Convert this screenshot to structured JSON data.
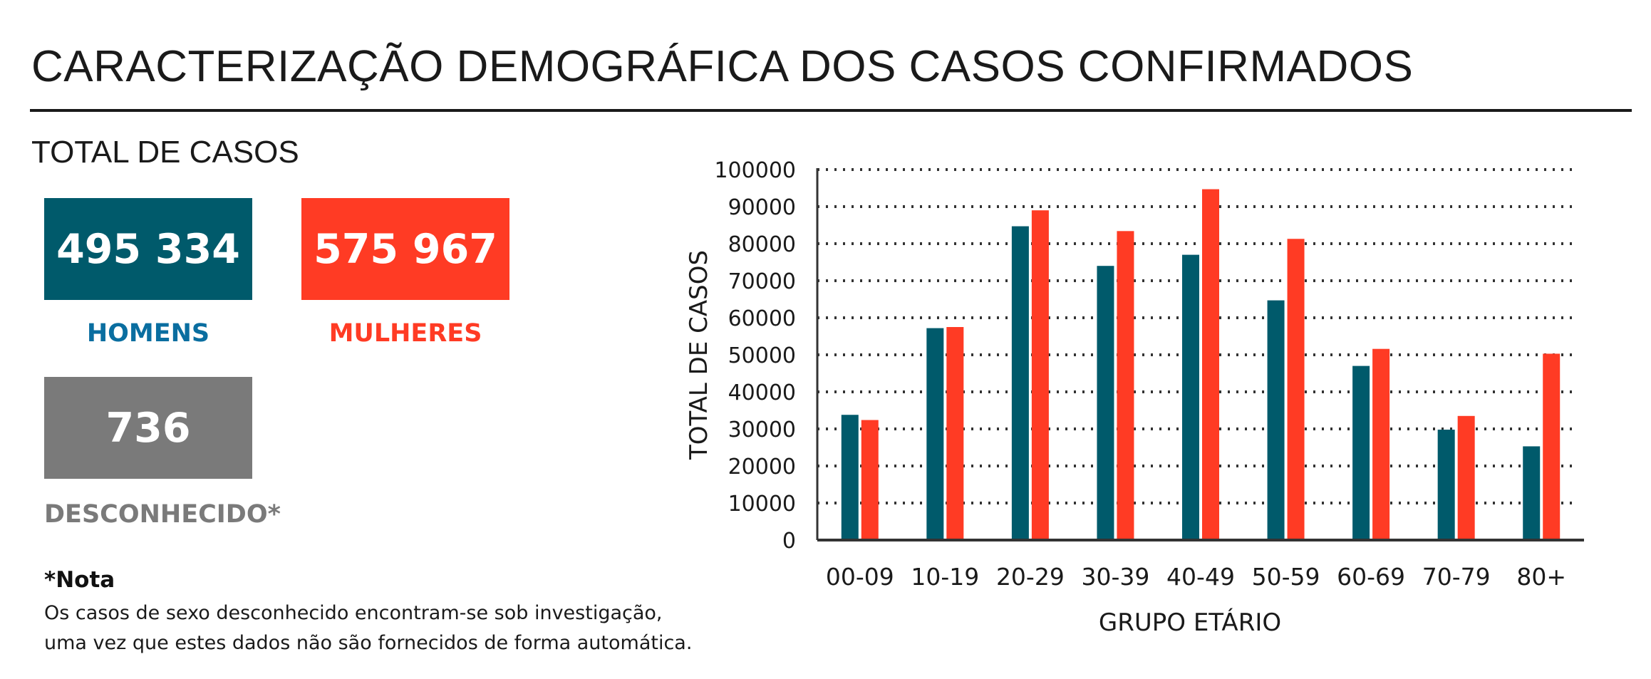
{
  "title": "CARACTERIZAÇÃO DEMOGRÁFICA DOS CASOS CONFIRMADOS",
  "subtitle": "TOTAL DE CASOS",
  "totals": {
    "men": {
      "value": "495 334",
      "label": "HOMENS",
      "color": "#005a6b"
    },
    "women": {
      "value": "575 967",
      "label": "MULHERES",
      "color": "#ff3b24"
    },
    "unknown": {
      "value": "736",
      "label": "DESCONHECIDO*",
      "color": "#7a7a7a"
    },
    "men_label_color": "#0a6ea0"
  },
  "note": {
    "title": "*Nota",
    "line1": "Os casos de sexo desconhecido encontram-se sob investigação,",
    "line2": "uma vez que estes dados não são fornecidos de forma automática."
  },
  "chart_data": {
    "type": "bar",
    "categories": [
      "00-09",
      "10-19",
      "20-29",
      "30-39",
      "40-49",
      "50-59",
      "60-69",
      "70-79",
      "80+"
    ],
    "series": [
      {
        "values": [
          33800,
          57200,
          84700,
          74000,
          77000,
          64700,
          47000,
          29800,
          25300
        ],
        "color": "#005a6b"
      },
      {
        "values": [
          32400,
          57500,
          89000,
          83400,
          94700,
          81300,
          51600,
          33500,
          50300
        ],
        "color": "#ff3b24"
      }
    ],
    "xlabel": "GRUPO ETÁRIO",
    "ylabel": "TOTAL DE CASOS",
    "ylim": [
      0,
      100000
    ],
    "yticks": [
      0,
      10000,
      20000,
      30000,
      40000,
      50000,
      60000,
      70000,
      80000,
      90000,
      100000
    ],
    "grid": true,
    "legend": "none"
  }
}
